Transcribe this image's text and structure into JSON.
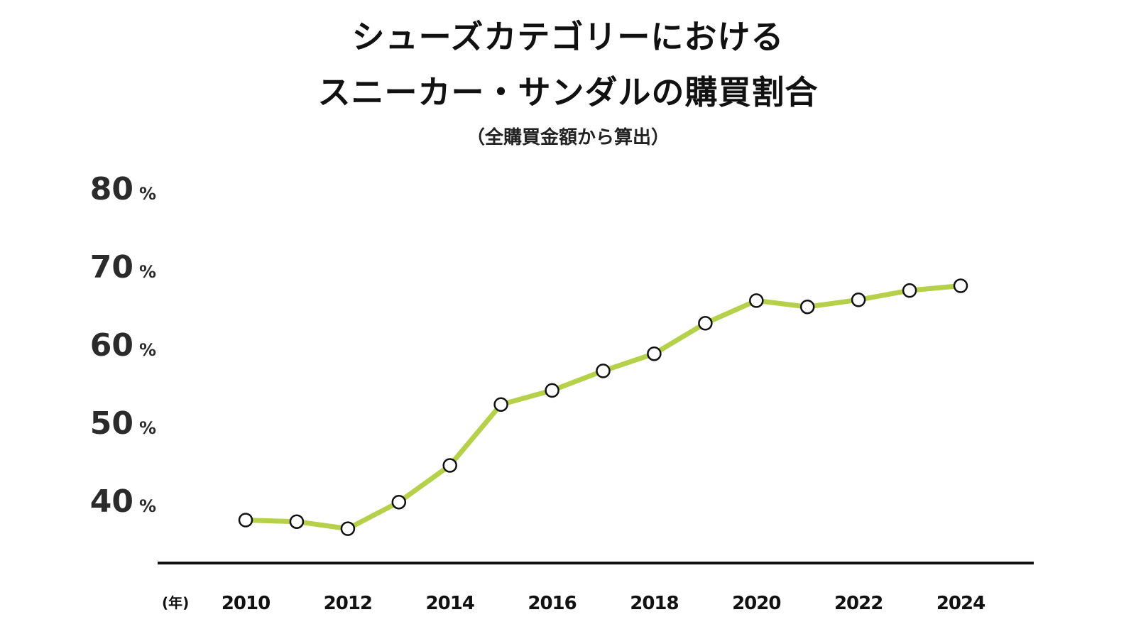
{
  "header": {
    "title_line1": "シューズカテゴリーにおける",
    "title_line2": "スニーカー・サンダルの購買割合",
    "subtitle": "（全購買金額から算出）"
  },
  "colors": {
    "line": "#b5d14a",
    "marker_fill": "#ffffff",
    "marker_stroke": "#111111",
    "axis": "#111111",
    "text": "#2b2b2b"
  },
  "chart_data": {
    "type": "line",
    "title": "シューズカテゴリーにおけるスニーカー・サンダルの購買割合",
    "subtitle": "（全購買金額から算出）",
    "xlabel": "(年)",
    "ylabel": "",
    "x": [
      2010,
      2011,
      2012,
      2013,
      2014,
      2015,
      2016,
      2017,
      2018,
      2019,
      2020,
      2021,
      2022,
      2023,
      2024
    ],
    "x_tick_labels": [
      "2010",
      "2012",
      "2014",
      "2016",
      "2018",
      "2020",
      "2022",
      "2024"
    ],
    "y_tick_labels": [
      "80",
      "70",
      "60",
      "50",
      "40"
    ],
    "y_tick_unit": "%",
    "ylim": [
      33,
      85
    ],
    "grid": false,
    "legend": null,
    "series": [
      {
        "name": "スニーカー・サンダルの購買割合",
        "values": [
          37.5,
          37.3,
          36.4,
          39.8,
          44.5,
          52.3,
          54.1,
          56.6,
          58.8,
          62.7,
          65.6,
          64.8,
          65.7,
          66.9,
          67.5
        ]
      }
    ]
  }
}
